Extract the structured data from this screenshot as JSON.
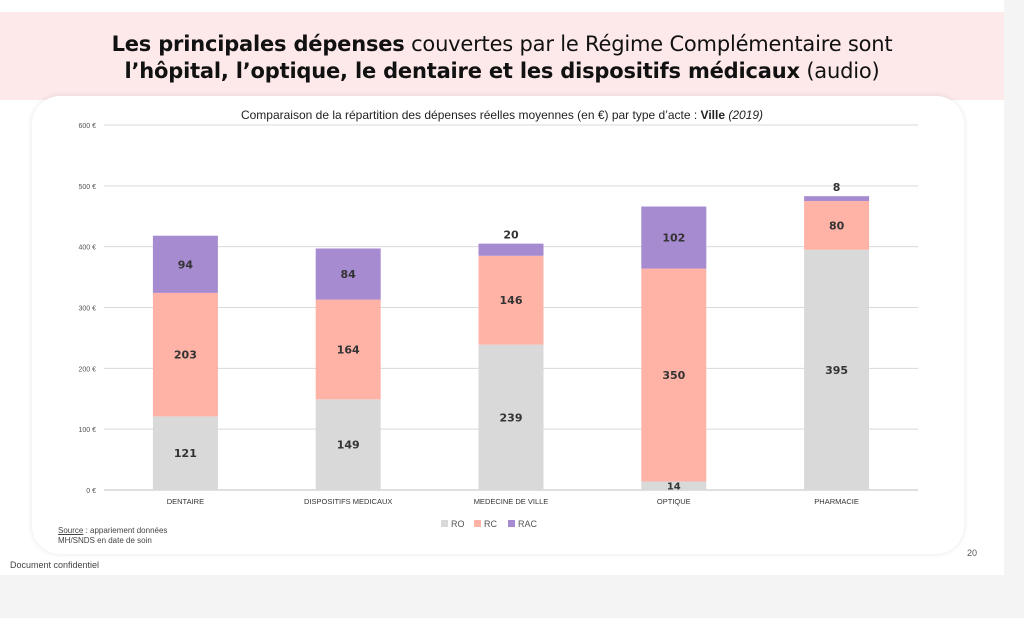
{
  "slide": {
    "title_line1_bold": "Les principales dépenses",
    "title_line1_rest": " couvertes par le Régime Complémentaire sont",
    "title_line2_bold": "l’hôpital, l’optique, le dentaire et les dispositifs médicaux",
    "title_line2_rest": " (audio)",
    "source_label": "Source",
    "source_rest": " : appariement données",
    "source_line2": "MH/SNDS en date de soin",
    "confidential": "Document confidentiel",
    "page_number": "20"
  },
  "colors": {
    "title_band": "#fde9ea",
    "RO": "#d9d9d9",
    "RC": "#ffb3a7",
    "RAC": "#a78bd0",
    "grid": "#d9d9d9"
  },
  "chart_data": {
    "type": "bar",
    "stacked": true,
    "title_prefix": "Comparaison de la répartition des dépenses réelles moyennes (en €) par type d’acte : ",
    "title_bold": "Ville",
    "title_italic": "(2019)",
    "categories": [
      "DENTAIRE",
      "DISPOSITIFS MEDICAUX",
      "MEDECINE DE VILLE",
      "OPTIQUE",
      "PHARMACIE"
    ],
    "series": [
      {
        "name": "RO",
        "values": [
          121,
          149,
          239,
          14,
          395
        ]
      },
      {
        "name": "RC",
        "values": [
          203,
          164,
          146,
          350,
          80
        ]
      },
      {
        "name": "RAC",
        "values": [
          94,
          84,
          20,
          102,
          8
        ]
      }
    ],
    "ylim": [
      0,
      600
    ],
    "yticks": [
      "0 €",
      "100 €",
      "200 €",
      "300 €",
      "400 €",
      "500 €",
      "600 €"
    ],
    "grid": true,
    "legend_position": "bottom-center"
  }
}
